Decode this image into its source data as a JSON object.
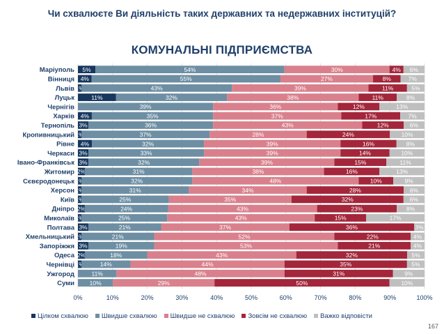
{
  "page": {
    "question": "Чи схвалюєте Ви діяльність таких державних та недержавних інституцій?",
    "page_number": "167"
  },
  "chart_data": {
    "type": "bar",
    "orientation": "horizontal",
    "stacked": true,
    "subtitle": "КОМУНАЛЬНІ ПІДПРИЄМСТВА",
    "x_ticks": [
      "0%",
      "10%",
      "20%",
      "30%",
      "40%",
      "50%",
      "60%",
      "70%",
      "80%",
      "90%",
      "100%"
    ],
    "xlim": [
      0,
      100
    ],
    "grid": true,
    "legend_position": "bottom",
    "categories": [
      "Маріуполь",
      "Вінниця",
      "Львів",
      "Луцьк",
      "Чернігів",
      "Харків",
      "Тернопіль",
      "Кропивницький",
      "Рівне",
      "Черкаси",
      "Івано-Франківськ",
      "Житомир",
      "Сєвєродонецьк",
      "Херсон",
      "Київ",
      "Дніпро",
      "Миколаїв",
      "Полтава",
      "Хмельницький",
      "Запоріжжя",
      "Одеса",
      "Чернівці",
      "Ужгород",
      "Суми"
    ],
    "series": [
      {
        "name": "Цілком схвалюю",
        "color": "#17375e",
        "values": [
          5,
          4,
          1,
          11,
          0,
          4,
          3,
          1,
          4,
          3,
          3,
          2,
          1,
          1,
          1,
          2,
          1,
          3,
          1,
          3,
          2,
          1,
          0,
          0
        ],
        "labels": [
          "5%",
          "4%",
          "1%",
          "11%",
          "",
          "4%",
          "3%",
          "1%",
          "4%",
          "3%",
          "3%",
          "2%",
          "1%",
          "1%",
          "1%",
          "2%",
          "1%",
          "3%",
          "1%",
          "3%",
          "2%",
          "1%",
          "",
          ""
        ]
      },
      {
        "name": "Швидше схвалюю",
        "color": "#6d8ea3",
        "values": [
          54,
          55,
          43,
          32,
          39,
          35,
          36,
          37,
          32,
          33,
          32,
          31,
          32,
          31,
          25,
          24,
          25,
          21,
          21,
          19,
          18,
          14,
          11,
          10
        ],
        "labels": [
          "54%",
          "55%",
          "43%",
          "32%",
          "39%",
          "35%",
          "36%",
          "37%",
          "32%",
          "33%",
          "32%",
          "31%",
          "32%",
          "31%",
          "25%",
          "24%",
          "25%",
          "21%",
          "21%",
          "19%",
          "18%",
          "14%",
          "11%",
          "10%"
        ]
      },
      {
        "name": "Швидше не схвалюю",
        "color": "#d9808c",
        "values": [
          30,
          27,
          39,
          38,
          36,
          37,
          43,
          28,
          39,
          39,
          39,
          38,
          48,
          34,
          35,
          43,
          43,
          37,
          52,
          53,
          43,
          44,
          48,
          29
        ],
        "labels": [
          "30%",
          "27%",
          "39%",
          "38%",
          "36%",
          "37%",
          "43%",
          "28%",
          "39%",
          "39%",
          "39%",
          "38%",
          "48%",
          "34%",
          "35%",
          "43%",
          "43%",
          "37%",
          "52%",
          "53%",
          "43%",
          "44%",
          "48%",
          "29%"
        ]
      },
      {
        "name": "Зовсім не схвалюю",
        "color": "#a3263a",
        "values": [
          4,
          8,
          11,
          11,
          12,
          17,
          12,
          24,
          16,
          14,
          15,
          16,
          10,
          28,
          32,
          23,
          15,
          36,
          22,
          21,
          32,
          35,
          31,
          50
        ],
        "labels": [
          "4%",
          "8%",
          "11%",
          "11%",
          "12%",
          "17%",
          "12%",
          "24%",
          "16%",
          "14%",
          "15%",
          "16%",
          "10%",
          "28%",
          "32%",
          "23%",
          "15%",
          "36%",
          "22%",
          "21%",
          "32%",
          "35%",
          "31%",
          "50%"
        ]
      },
      {
        "name": "Важко відповісти",
        "color": "#bfbfbf",
        "values": [
          6,
          7,
          5,
          8,
          13,
          7,
          6,
          10,
          8,
          10,
          11,
          13,
          9,
          6,
          6,
          8,
          17,
          3,
          4,
          4,
          5,
          5,
          9,
          10
        ],
        "labels": [
          "6%",
          "7%",
          "5%",
          "8%",
          "13%",
          "7%",
          "6%",
          "10%",
          "8%",
          "10%",
          "11%",
          "13%",
          "9%",
          "6%",
          "6%",
          "8%",
          "17%",
          "3%",
          "4%",
          "4%",
          "5%",
          "5%",
          "9%",
          "10%"
        ]
      }
    ]
  }
}
